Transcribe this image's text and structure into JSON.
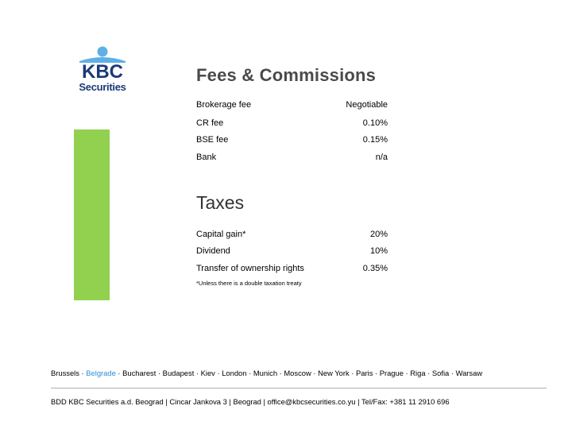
{
  "logo": {
    "line1": "KBC",
    "line2": "Securities",
    "brand_color": "#1b3a78",
    "figure_color": "#5fb0e6"
  },
  "accent_bar_color": "#92d050",
  "fees": {
    "title": "Fees & Commissions",
    "rows": [
      {
        "label": "Brokerage fee",
        "value": "Negotiable"
      },
      {
        "label": "CR fee",
        "value": "0.10%"
      },
      {
        "label": "BSE fee",
        "value": "0.15%"
      },
      {
        "label": "Bank",
        "value": "n/a"
      }
    ]
  },
  "taxes": {
    "title": "Taxes",
    "rows": [
      {
        "label": "Capital gain*",
        "value": "20%"
      },
      {
        "label": "Dividend",
        "value": "10%"
      },
      {
        "label": "Transfer of ownership rights",
        "value": "0.35%"
      }
    ],
    "note": "*Unless there is a double taxation treaty"
  },
  "cities": {
    "before": "Brussels · ",
    "highlight": "Belgrade",
    "after": " · Bucharest · Budapest · Kiev · London · Munich · Moscow · New York · Paris · Prague · Riga · Sofia · Warsaw",
    "highlight_color": "#2a8fd8"
  },
  "footer": "BDD KBC Securities a.d. Beograd | Cincar Jankova 3 | Beograd | office@kbcsecurities.co.yu | Tel/Fax: +381 11 2910 696"
}
